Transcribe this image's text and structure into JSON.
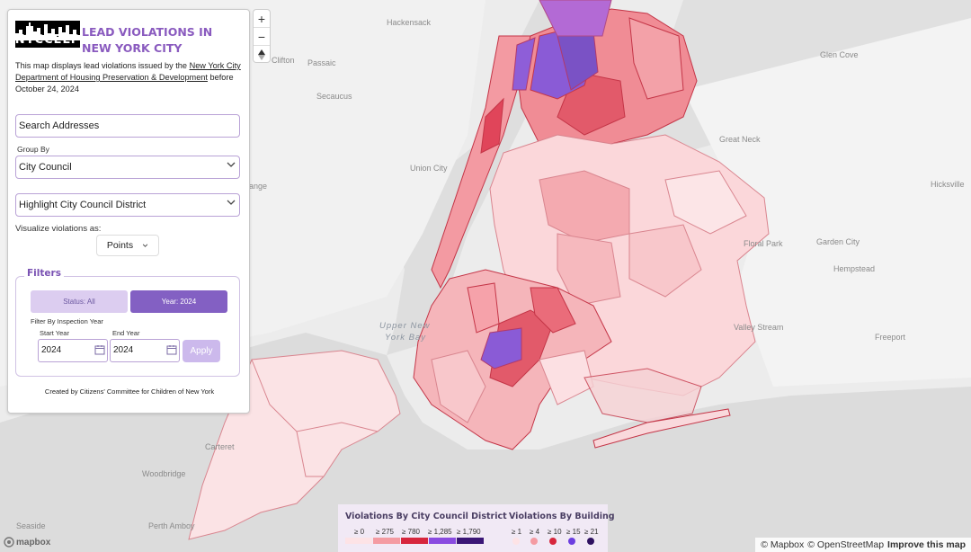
{
  "header": {
    "logo_text": "NYCCELP",
    "title": "Lead Violations in New York City"
  },
  "description": {
    "prefix": "This map displays lead violations issued by the ",
    "link": "New York City Department of Housing Preservation & Development",
    "suffix": " before October 24, 2024"
  },
  "search": {
    "placeholder": "Search Addresses"
  },
  "group_by": {
    "label": "Group By",
    "value": "City Council"
  },
  "highlight": {
    "value": "Highlight City Council District"
  },
  "visualize": {
    "label": "Visualize violations as:",
    "value": "Points"
  },
  "filters": {
    "title": "Filters",
    "tabs": [
      "Status: All",
      "Year: 2024"
    ],
    "inspection_label": "Filter By Inspection Year",
    "start_label": "Start Year",
    "start_value": "2024",
    "end_label": "End Year",
    "end_value": "2024",
    "apply_label": "Apply"
  },
  "credit": "Created by Citizens' Committee for Children of New York",
  "zoom": {
    "in": "+",
    "out": "−"
  },
  "map_labels": [
    "Hackensack",
    "Clifton",
    "Passaic",
    "Union City",
    "Secaucus",
    "ange",
    "Great Neck",
    "Glen Cove",
    "Floral Park",
    "Garden City",
    "Hempstead",
    "Valley Stream",
    "Freeport",
    "Hicksville",
    "Upper New York Bay",
    "Seaside",
    "Carteret",
    "Woodbridge",
    "Perth Amboy"
  ],
  "legend": {
    "district_title": "Violations By City Council District",
    "district_bins": [
      "≥ 0",
      "≥ 275",
      "≥ 780",
      "≥ 1,285",
      "≥ 1,790"
    ],
    "district_colors": [
      "#fde3e6",
      "#f49ba2",
      "#d7263d",
      "#8a4be0",
      "#3b1676"
    ],
    "building_title": "Violations By Building",
    "building_bins": [
      "≥ 1",
      "≥ 4",
      "≥ 10",
      "≥ 15",
      "≥ 21"
    ],
    "building_colors": [
      "#fde3e6",
      "#f49ba2",
      "#d7263d",
      "#6c3ee0",
      "#2e1160"
    ]
  },
  "attribution": {
    "mapbox": "© Mapbox",
    "osm": "© OpenStreetMap",
    "improve": "Improve this map",
    "logo": "mapbox"
  }
}
